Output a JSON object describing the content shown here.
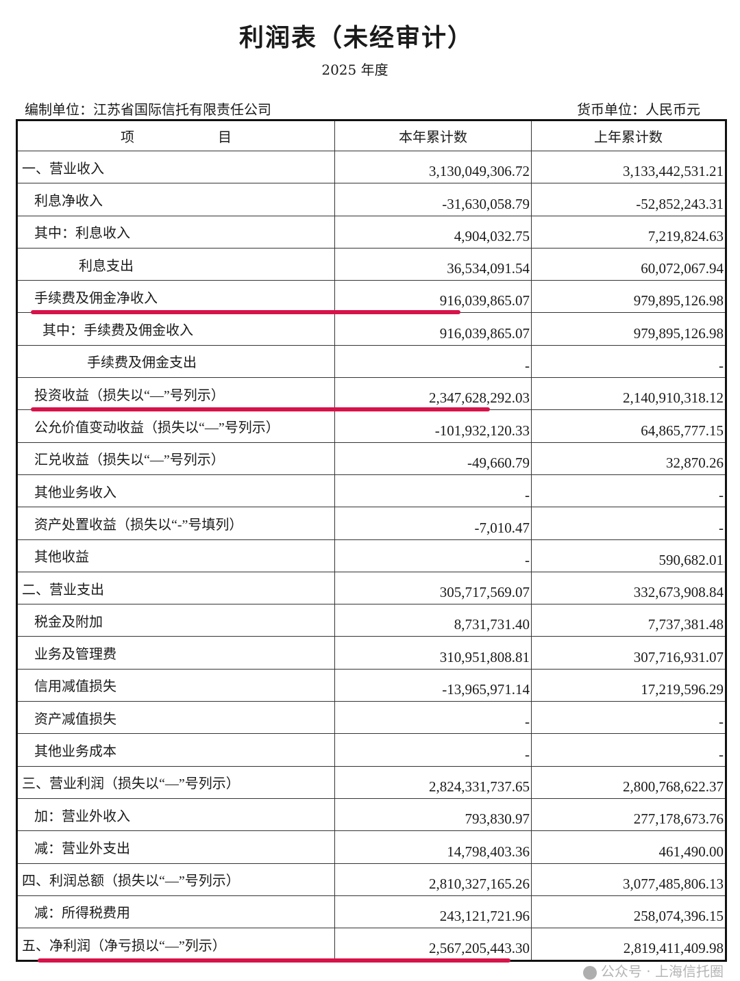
{
  "header": {
    "title": "利润表（未经审计）",
    "period": "2025 年度",
    "compiler": "编制单位：江苏省国际信托有限责任公司",
    "currency": "货币单位：人民币元"
  },
  "table": {
    "columns": [
      "项",
      "目",
      "本年累计数",
      "上年累计数"
    ],
    "rows": [
      {
        "label": "一、营业收入",
        "indent": 0,
        "current": "3,130,049,306.72",
        "prior": "3,133,442,531.21"
      },
      {
        "label": "利息净收入",
        "indent": 1,
        "current": "-31,630,058.79",
        "prior": "-52,852,243.31"
      },
      {
        "label": "其中：利息收入",
        "indent": 1,
        "current": "4,904,032.75",
        "prior": "7,219,824.63"
      },
      {
        "label": "利息支出",
        "indent": 3,
        "current": "36,534,091.54",
        "prior": "60,072,067.94"
      },
      {
        "label": "手续费及佣金净收入",
        "indent": 1,
        "current": "916,039,865.07",
        "prior": "979,895,126.98",
        "highlight": true
      },
      {
        "label": "其中：手续费及佣金收入",
        "indent": 2,
        "current": "916,039,865.07",
        "prior": "979,895,126.98"
      },
      {
        "label": "手续费及佣金支出",
        "indent": 4,
        "current": "-",
        "prior": "-"
      },
      {
        "label": "投资收益（损失以“—”号列示）",
        "indent": 1,
        "current": "2,347,628,292.03",
        "prior": "2,140,910,318.12",
        "highlight": true
      },
      {
        "label": "公允价值变动收益（损失以“—”号列示）",
        "indent": 1,
        "current": "-101,932,120.33",
        "prior": "64,865,777.15"
      },
      {
        "label": "汇兑收益（损失以“—”号列示）",
        "indent": 1,
        "current": "-49,660.79",
        "prior": "32,870.26"
      },
      {
        "label": "其他业务收入",
        "indent": 1,
        "current": "-",
        "prior": "-"
      },
      {
        "label": "资产处置收益（损失以“-”号填列）",
        "indent": 1,
        "current": "-7,010.47",
        "prior": "-"
      },
      {
        "label": "其他收益",
        "indent": 1,
        "current": "-",
        "prior": "590,682.01"
      },
      {
        "label": "二、营业支出",
        "indent": 0,
        "current": "305,717,569.07",
        "prior": "332,673,908.84"
      },
      {
        "label": "税金及附加",
        "indent": 1,
        "current": "8,731,731.40",
        "prior": "7,737,381.48"
      },
      {
        "label": "业务及管理费",
        "indent": 1,
        "current": "310,951,808.81",
        "prior": "307,716,931.07"
      },
      {
        "label": "信用减值损失",
        "indent": 1,
        "current": "-13,965,971.14",
        "prior": "17,219,596.29"
      },
      {
        "label": "资产减值损失",
        "indent": 1,
        "current": "-",
        "prior": "-"
      },
      {
        "label": "其他业务成本",
        "indent": 1,
        "current": "-",
        "prior": "-"
      },
      {
        "label": "三、营业利润（损失以“—”号列示）",
        "indent": 0,
        "current": "2,824,331,737.65",
        "prior": "2,800,768,622.37"
      },
      {
        "label": "加：营业外收入",
        "indent": 1,
        "current": "793,830.97",
        "prior": "277,178,673.76"
      },
      {
        "label": "减：营业外支出",
        "indent": 1,
        "current": "14,798,403.36",
        "prior": "461,490.00"
      },
      {
        "label": "四、利润总额（损失以“—”号列示）",
        "indent": 0,
        "current": "2,810,327,165.26",
        "prior": "3,077,485,806.13"
      },
      {
        "label": "减：所得税费用",
        "indent": 1,
        "current": "243,121,721.96",
        "prior": "258,074,396.15"
      },
      {
        "label": "五、净利润（净亏损以“—”列示）",
        "indent": 0,
        "current": "2,567,205,443.30",
        "prior": "2,819,411,409.98",
        "highlight": true
      }
    ]
  },
  "highlight_color": "#d6134a",
  "watermark": "公众号 · 上海信托圈"
}
